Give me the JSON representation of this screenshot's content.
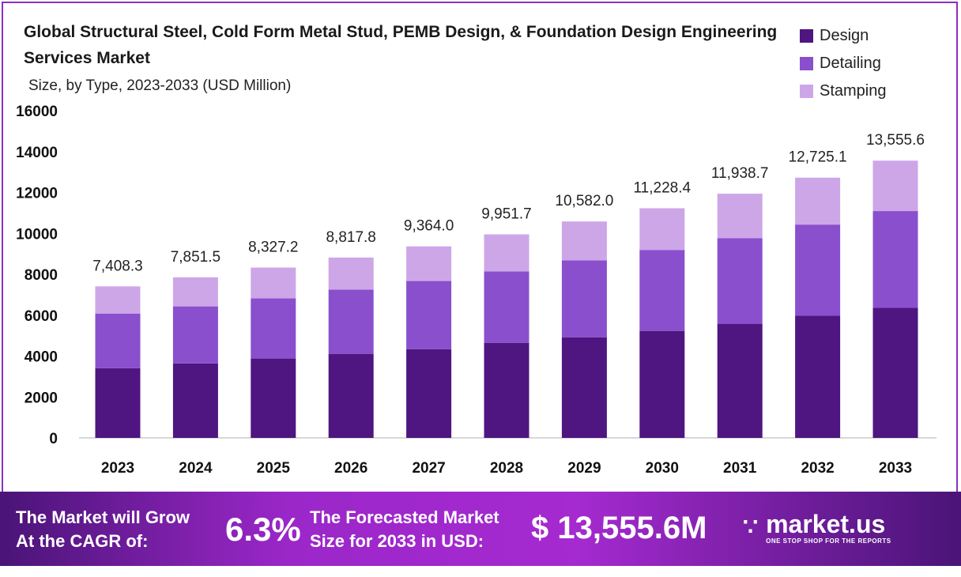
{
  "chart_data": {
    "type": "bar",
    "stacked": true,
    "title": "Global Structural Steel, Cold Form Metal Stud, PEMB Design, & Foundation Design Engineering Services Market",
    "subtitle": "Size, by Type, 2023-2033 (USD Million)",
    "xlabel": "",
    "ylabel": "",
    "ylim": [
      0,
      16000
    ],
    "yticks": [
      "0",
      "2000",
      "4000",
      "6000",
      "8000",
      "10000",
      "12000",
      "14000",
      "16000"
    ],
    "grid": false,
    "legend_position": "top-right",
    "categories": [
      "2023",
      "2024",
      "2025",
      "2026",
      "2027",
      "2028",
      "2029",
      "2030",
      "2031",
      "2032",
      "2033"
    ],
    "series": [
      {
        "name": "Design",
        "color": "#4f1580",
        "values": [
          3410,
          3640,
          3880,
          4110,
          4340,
          4650,
          4920,
          5230,
          5580,
          5970,
          6360
        ]
      },
      {
        "name": "Detailing",
        "color": "#8a4fcd",
        "values": [
          2670,
          2790,
          2940,
          3140,
          3330,
          3490,
          3760,
          3960,
          4190,
          4460,
          4730
        ]
      },
      {
        "name": "Stamping",
        "color": "#cda6e8",
        "values": [
          1328.3,
          1421.5,
          1507.2,
          1567.8,
          1694.0,
          1811.7,
          1902.0,
          2038.4,
          2168.7,
          2295.1,
          2465.6
        ]
      }
    ],
    "totals": [
      "7,408.3",
      "7,851.5",
      "8,327.2",
      "8,817.8",
      "9,364.0",
      "9,951.7",
      "10,582.0",
      "11,228.4",
      "11,938.7",
      "12,725.1",
      "13,555.6"
    ],
    "total_values": [
      7408.3,
      7851.5,
      8327.2,
      8817.8,
      9364.0,
      9951.7,
      10582.0,
      11228.4,
      11938.7,
      12725.1,
      13555.6
    ]
  },
  "footer": {
    "cagr_label_1": "The Market will Grow",
    "cagr_label_2": "At the CAGR of:",
    "cagr_value": "6.3%",
    "forecast_label_1": "The Forecasted Market",
    "forecast_label_2": "Size for 2033 in USD:",
    "forecast_value": "$ 13,555.6M",
    "brand": "market.us",
    "brand_tagline": "ONE STOP SHOP FOR THE REPORTS"
  }
}
